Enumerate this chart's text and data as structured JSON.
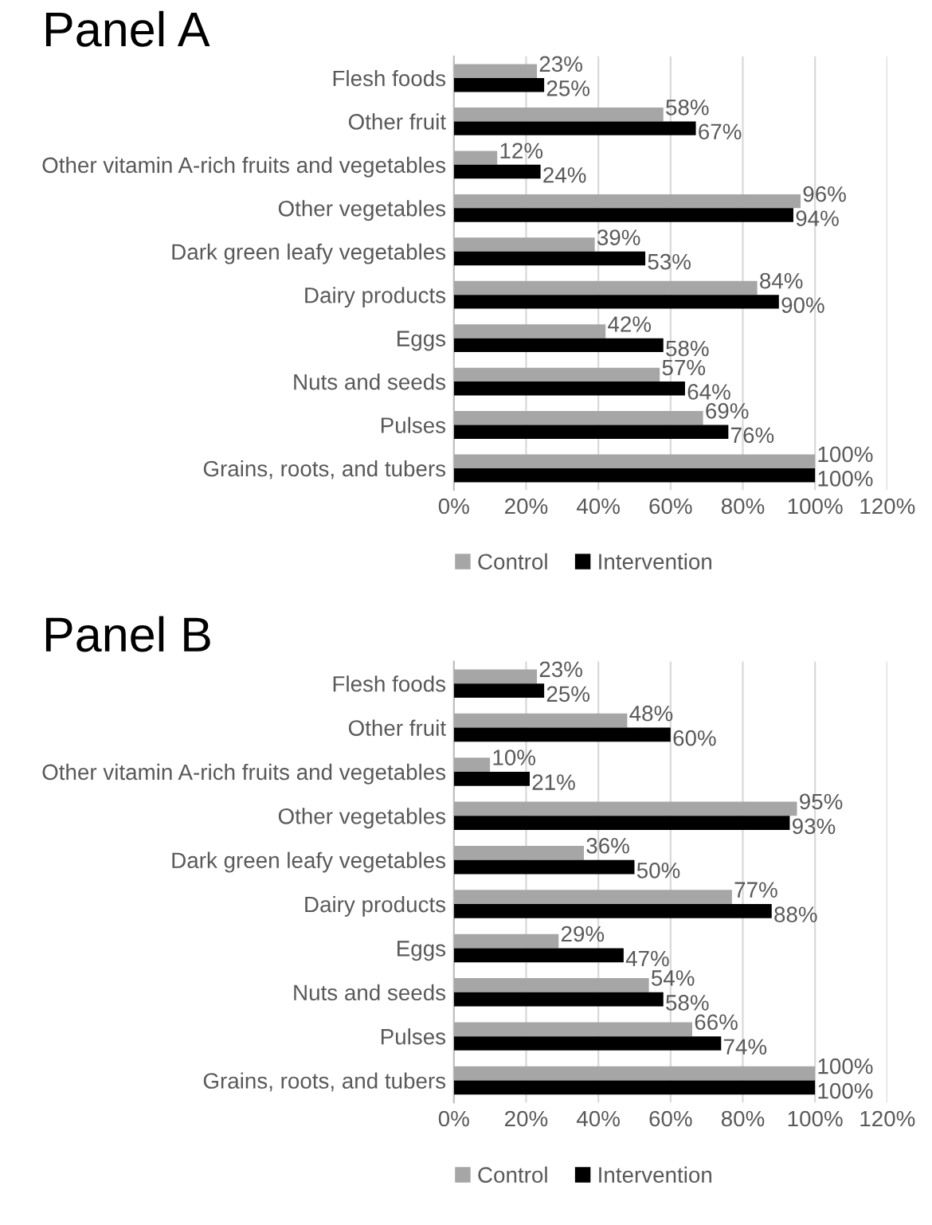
{
  "chart_data": [
    {
      "type": "bar",
      "title": "Panel A",
      "orientation": "horizontal",
      "categories": [
        "Flesh foods",
        "Other fruit",
        "Other vitamin A-rich fruits and vegetables",
        "Other vegetables",
        "Dark green leafy vegetables",
        "Dairy products",
        "Eggs",
        "Nuts and seeds",
        "Pulses",
        "Grains, roots, and tubers"
      ],
      "series": [
        {
          "name": "Control",
          "color": "#a6a6a6",
          "values": [
            23,
            58,
            12,
            96,
            39,
            84,
            42,
            57,
            69,
            100
          ],
          "value_labels": [
            "23%",
            "58%",
            "12%",
            "96%",
            "39%",
            "84%",
            "42%",
            "57%",
            "69%",
            "100%"
          ]
        },
        {
          "name": "Intervention",
          "color": "#000000",
          "values": [
            25,
            67,
            24,
            94,
            53,
            90,
            58,
            64,
            76,
            100
          ],
          "value_labels": [
            "25%",
            "67%",
            "24%",
            "94%",
            "53%",
            "90%",
            "58%",
            "64%",
            "76%",
            "100%"
          ]
        }
      ],
      "xlim": [
        0,
        120
      ],
      "xticks": [
        {
          "value": 0,
          "label": "0%"
        },
        {
          "value": 20,
          "label": "20%"
        },
        {
          "value": 40,
          "label": "40%"
        },
        {
          "value": 60,
          "label": "60%"
        },
        {
          "value": 80,
          "label": "80%"
        },
        {
          "value": 100,
          "label": "100%"
        },
        {
          "value": 120,
          "label": "120%"
        }
      ],
      "grid": "x",
      "legend": "bottom"
    },
    {
      "type": "bar",
      "title": "Panel B",
      "orientation": "horizontal",
      "categories": [
        "Flesh foods",
        "Other fruit",
        "Other vitamin A-rich fruits and vegetables",
        "Other vegetables",
        "Dark green leafy vegetables",
        "Dairy products",
        "Eggs",
        "Nuts and seeds",
        "Pulses",
        "Grains, roots, and tubers"
      ],
      "series": [
        {
          "name": "Control",
          "color": "#a6a6a6",
          "values": [
            23,
            48,
            10,
            95,
            36,
            77,
            29,
            54,
            66,
            100
          ],
          "value_labels": [
            "23%",
            "48%",
            "10%",
            "95%",
            "36%",
            "77%",
            "29%",
            "54%",
            "66%",
            "100%"
          ]
        },
        {
          "name": "Intervention",
          "color": "#000000",
          "values": [
            25,
            60,
            21,
            93,
            50,
            88,
            47,
            58,
            74,
            100
          ],
          "value_labels": [
            "25%",
            "60%",
            "21%",
            "93%",
            "50%",
            "88%",
            "47%",
            "58%",
            "74%",
            "100%"
          ]
        }
      ],
      "xlim": [
        0,
        120
      ],
      "xticks": [
        {
          "value": 0,
          "label": "0%"
        },
        {
          "value": 20,
          "label": "20%"
        },
        {
          "value": 40,
          "label": "40%"
        },
        {
          "value": 60,
          "label": "60%"
        },
        {
          "value": 80,
          "label": "80%"
        },
        {
          "value": 100,
          "label": "100%"
        },
        {
          "value": 120,
          "label": "120%"
        }
      ],
      "grid": "x",
      "legend": "bottom"
    }
  ]
}
